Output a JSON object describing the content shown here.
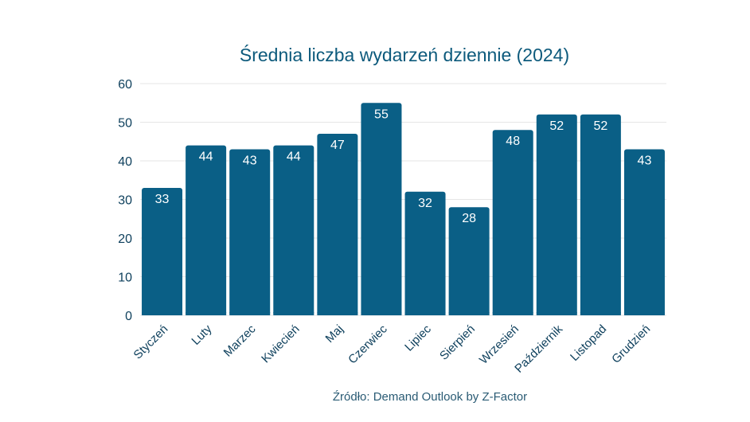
{
  "chart_data": {
    "type": "bar",
    "title": "Średnia liczba wydarzeń dziennie (2024)",
    "source": "Źródło: Demand Outlook by Z-Factor",
    "xlabel": "",
    "ylabel": "",
    "ylim": [
      0,
      60
    ],
    "yticks": [
      0,
      10,
      20,
      30,
      40,
      50,
      60
    ],
    "grid": true,
    "categories": [
      "Styczeń",
      "Luty",
      "Marzec",
      "Kwiecień",
      "Maj",
      "Czerwiec",
      "Lipiec",
      "Sierpień",
      "Wrzesień",
      "Październik",
      "Listopad",
      "Grudzień"
    ],
    "values": [
      33,
      44,
      43,
      44,
      47,
      55,
      32,
      28,
      48,
      52,
      52,
      43
    ],
    "bar_color": "#0a5f86",
    "label_color": "#ffffff",
    "axis_text_color": "#0d3f5c",
    "grid_color": "#e6e6e6"
  }
}
